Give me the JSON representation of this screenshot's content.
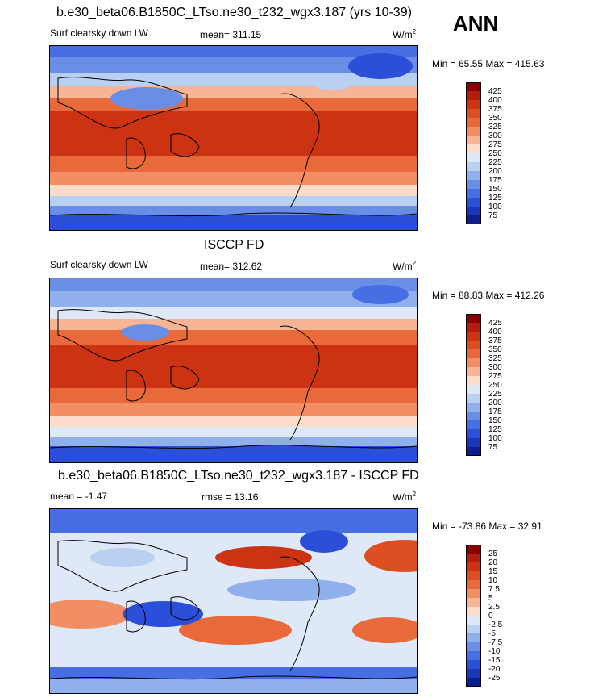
{
  "season": "ANN",
  "panels": [
    {
      "title": "b.e30_beta06.B1850C_LTso.ne30_t232_wgx3.187 (yrs 10-39)",
      "left_label": "Surf clearsky down LW",
      "center_label": "mean= 311.15",
      "unit_base": "W/m",
      "unit_sup": "2",
      "minmax": "Min =  65.55 Max = 415.63",
      "colorbar": {
        "labels": [
          "425",
          "400",
          "375",
          "350",
          "325",
          "300",
          "275",
          "250",
          "225",
          "200",
          "175",
          "150",
          "125",
          "100",
          "75"
        ],
        "colors": [
          "#8b0000",
          "#b21e0b",
          "#cc3312",
          "#dd4f22",
          "#e86a3a",
          "#f18e63",
          "#f7b596",
          "#fbdccb",
          "#dfe8f7",
          "#b9d0f2",
          "#8fb0ec",
          "#6a8ee6",
          "#476ee2",
          "#2b4fd8",
          "#1a37b8",
          "#0c1f8c"
        ]
      }
    },
    {
      "title": "ISCCP FD",
      "left_label": "Surf clearsky down LW",
      "center_label": "mean= 312.62",
      "unit_base": "W/m",
      "unit_sup": "2",
      "minmax": "Min =  88.83 Max = 412.26",
      "colorbar": {
        "labels": [
          "425",
          "400",
          "375",
          "350",
          "325",
          "300",
          "275",
          "250",
          "225",
          "200",
          "175",
          "150",
          "125",
          "100",
          "75"
        ],
        "colors": [
          "#8b0000",
          "#b21e0b",
          "#cc3312",
          "#dd4f22",
          "#e86a3a",
          "#f18e63",
          "#f7b596",
          "#fbdccb",
          "#dfe8f7",
          "#b9d0f2",
          "#8fb0ec",
          "#6a8ee6",
          "#476ee2",
          "#2b4fd8",
          "#1a37b8",
          "#0c1f8c"
        ]
      }
    },
    {
      "title": "b.e30_beta06.B1850C_LTso.ne30_t232_wgx3.187 - ISCCP FD",
      "left_label": "mean =  -1.47",
      "center_label": "rmse =  13.16",
      "unit_base": "W/m",
      "unit_sup": "2",
      "minmax": "Min = -73.86 Max =  32.91",
      "colorbar": {
        "labels": [
          "25",
          "20",
          "15",
          "10",
          "7.5",
          "5",
          "2.5",
          "0",
          "-2.5",
          "-5",
          "-7.5",
          "-10",
          "-15",
          "-20",
          "-25"
        ],
        "colors": [
          "#8b0000",
          "#b21e0b",
          "#cc3312",
          "#dd4f22",
          "#e86a3a",
          "#f18e63",
          "#f7b596",
          "#fbdccb",
          "#dfe8f7",
          "#b9d0f2",
          "#8fb0ec",
          "#6a8ee6",
          "#476ee2",
          "#2b4fd8",
          "#1a37b8",
          "#0c1f8c"
        ]
      }
    }
  ]
}
